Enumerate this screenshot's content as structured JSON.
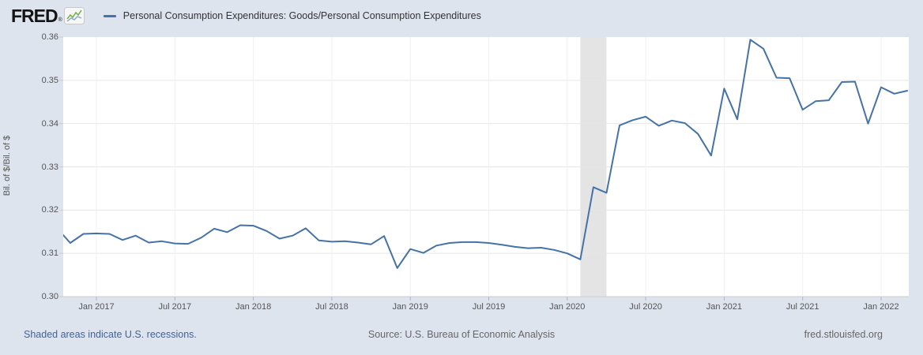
{
  "header": {
    "logo_text": "FRED",
    "logo_registered": "®",
    "series_title": "Personal Consumption Expenditures: Goods/Personal Consumption Expenditures"
  },
  "footer": {
    "recession_note": "Shaded areas indicate U.S. recessions.",
    "source": "Source: U.S. Bureau of Economic Analysis",
    "site": "fred.stlouisfed.org"
  },
  "colors": {
    "background": "#dde4ee",
    "plot_background": "#ffffff",
    "line": "#4572a7",
    "recession_band": "#e4e4e4",
    "gridline": "#e6e6e6",
    "vertical_gridline": "#f0f0f0",
    "axis_line": "#cccccc",
    "tick_mark": "#aab6c8",
    "y_tick_mark": "#cccccc",
    "tick_label": "#555555",
    "title_text": "#333333",
    "link": "#41629e",
    "muted_text": "#666666"
  },
  "chart_data": {
    "type": "line",
    "title": "Personal Consumption Expenditures: Goods/Personal Consumption Expenditures",
    "ylabel": "Bil. of $/Bil. of $",
    "xlabel": "",
    "ylim": [
      0.3,
      0.36
    ],
    "grid": "horizontal",
    "legend_position": "top-header",
    "y_ticks": [
      "0.30",
      "0.31",
      "0.32",
      "0.33",
      "0.34",
      "0.35",
      "0.36"
    ],
    "x_ticks": [
      {
        "label": "Jan 2017",
        "month": "2017-01"
      },
      {
        "label": "Jul 2017",
        "month": "2017-07"
      },
      {
        "label": "Jan 2018",
        "month": "2018-01"
      },
      {
        "label": "Jul 2018",
        "month": "2018-07"
      },
      {
        "label": "Jan 2019",
        "month": "2019-01"
      },
      {
        "label": "Jul 2019",
        "month": "2019-07"
      },
      {
        "label": "Jan 2020",
        "month": "2020-01"
      },
      {
        "label": "Jul 2020",
        "month": "2020-07"
      },
      {
        "label": "Jan 2021",
        "month": "2021-01"
      },
      {
        "label": "Jul 2021",
        "month": "2021-07"
      },
      {
        "label": "Jan 2022",
        "month": "2022-01"
      }
    ],
    "recession_band": {
      "from": "2020-02",
      "to": "2020-04"
    },
    "series": [
      {
        "name": "Personal Consumption Expenditures: Goods/Personal Consumption Expenditures",
        "x": [
          "2016-10",
          "2016-11",
          "2016-12",
          "2017-01",
          "2017-02",
          "2017-03",
          "2017-04",
          "2017-05",
          "2017-06",
          "2017-07",
          "2017-08",
          "2017-09",
          "2017-10",
          "2017-11",
          "2017-12",
          "2018-01",
          "2018-02",
          "2018-03",
          "2018-04",
          "2018-05",
          "2018-06",
          "2018-07",
          "2018-08",
          "2018-09",
          "2018-10",
          "2018-11",
          "2018-12",
          "2019-01",
          "2019-02",
          "2019-03",
          "2019-04",
          "2019-05",
          "2019-06",
          "2019-07",
          "2019-08",
          "2019-09",
          "2019-10",
          "2019-11",
          "2019-12",
          "2020-01",
          "2020-02",
          "2020-03",
          "2020-04",
          "2020-05",
          "2020-06",
          "2020-07",
          "2020-08",
          "2020-09",
          "2020-10",
          "2020-11",
          "2020-12",
          "2021-01",
          "2021-02",
          "2021-03",
          "2021-04",
          "2021-05",
          "2021-06",
          "2021-07",
          "2021-08",
          "2021-09",
          "2021-10",
          "2021-11",
          "2021-12",
          "2022-01",
          "2022-02",
          "2022-03"
        ],
        "values": [
          0.3158,
          0.3124,
          0.3145,
          0.3146,
          0.3145,
          0.3131,
          0.3141,
          0.3125,
          0.3128,
          0.3123,
          0.3122,
          0.3136,
          0.3157,
          0.3149,
          0.3165,
          0.3164,
          0.3152,
          0.3134,
          0.3141,
          0.3158,
          0.313,
          0.3127,
          0.3128,
          0.3125,
          0.3121,
          0.314,
          0.3066,
          0.311,
          0.3101,
          0.3118,
          0.3124,
          0.3126,
          0.3126,
          0.3124,
          0.312,
          0.3115,
          0.3112,
          0.3113,
          0.3108,
          0.31,
          0.3086,
          0.3253,
          0.324,
          0.3396,
          0.3408,
          0.3416,
          0.3395,
          0.3407,
          0.3401,
          0.3376,
          0.3326,
          0.3481,
          0.341,
          0.3594,
          0.3573,
          0.3506,
          0.3505,
          0.3432,
          0.3452,
          0.3454,
          0.3496,
          0.3497,
          0.34,
          0.3484,
          0.3469,
          0.3476
        ]
      }
    ]
  }
}
